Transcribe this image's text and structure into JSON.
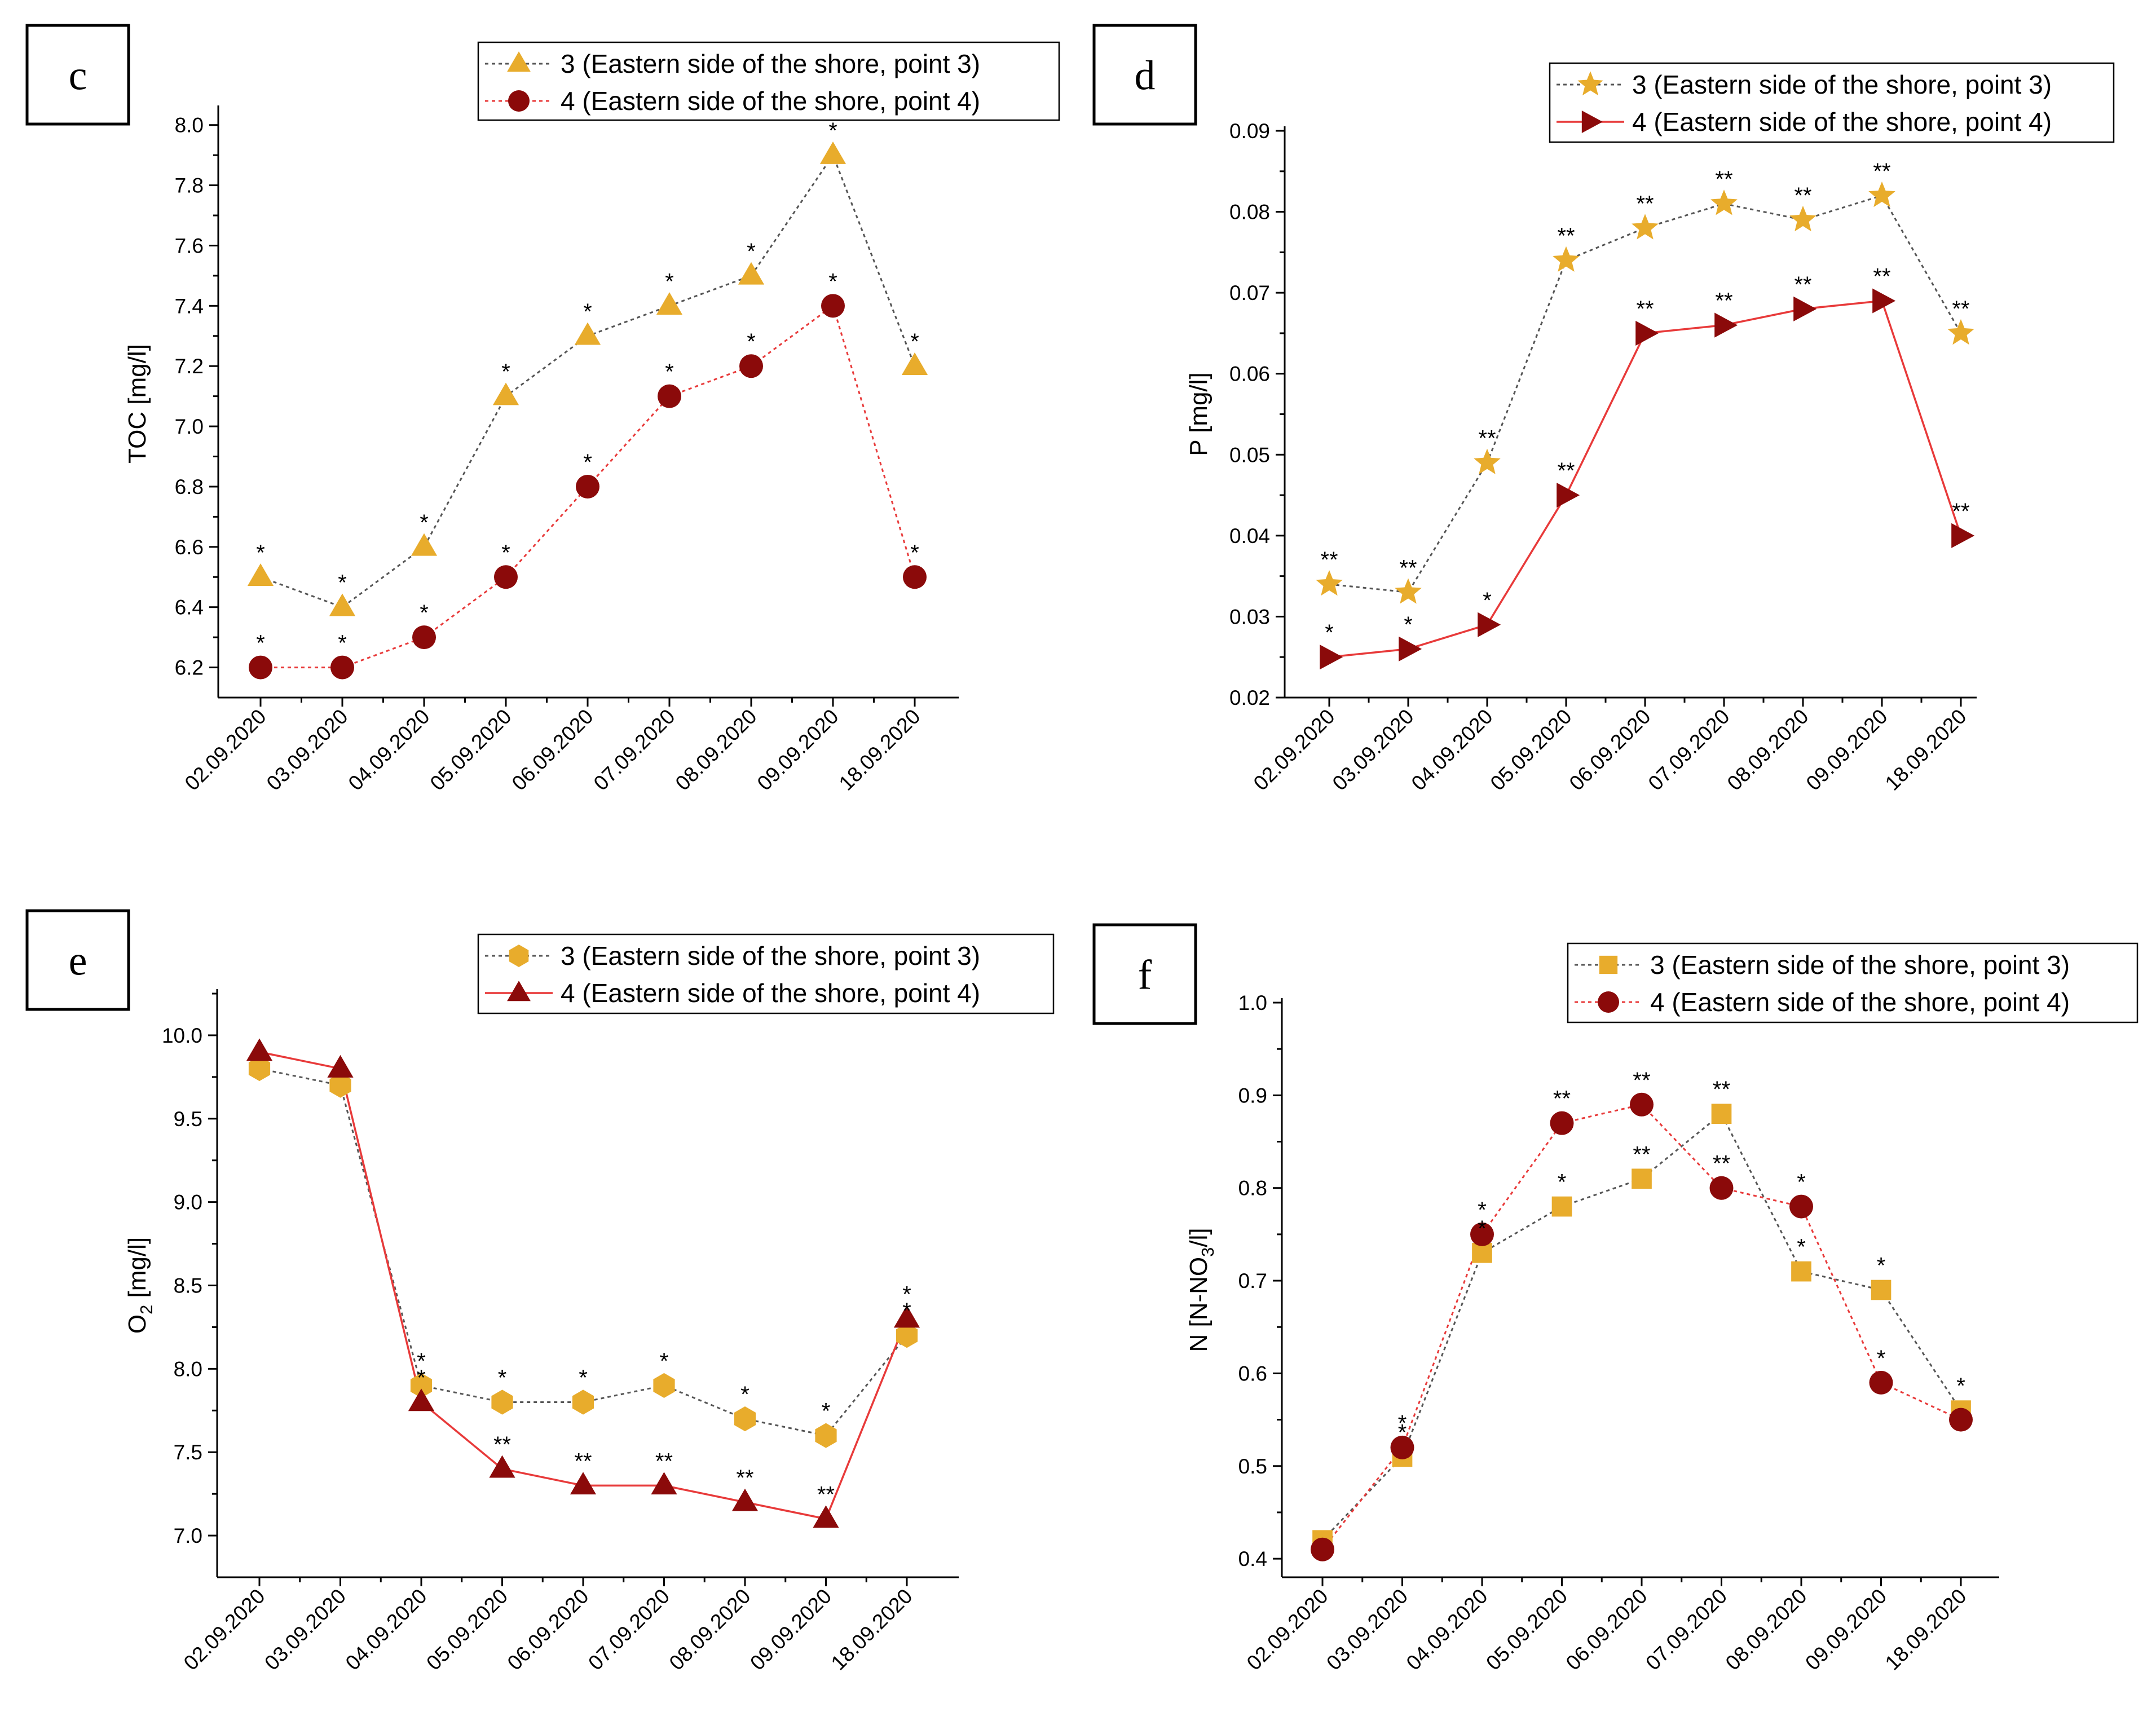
{
  "figure": {
    "panels": [
      "c",
      "d",
      "e",
      "f"
    ]
  },
  "colors": {
    "gold": "#E8AC2C",
    "darkred": "#8B0A0A",
    "red_line": "#E83A3A",
    "gray_line": "#555555"
  },
  "chart_data": [
    {
      "panel": "c",
      "type": "line",
      "categories": [
        "02.09.2020",
        "03.09.2020",
        "04.09.2020",
        "05.09.2020",
        "06.09.2020",
        "07.09.2020",
        "08.09.2020",
        "09.09.2020",
        "18.09.2020"
      ],
      "ylabel": "TOC [mg/l]",
      "ylim": [
        6.1,
        8.05
      ],
      "yticks": [
        "6.2",
        "6.4",
        "6.6",
        "6.8",
        "7.0",
        "7.2",
        "7.4",
        "7.6",
        "7.8",
        "8.0"
      ],
      "legend_position": "top-right",
      "series": [
        {
          "name": "3 (Eastern side of the shore, point 3)",
          "marker": "triangle",
          "color": "#E8AC2C",
          "line": "dotted-gray",
          "values": [
            6.5,
            6.4,
            6.6,
            7.1,
            7.3,
            7.4,
            7.5,
            7.9,
            7.2
          ],
          "labels": [
            "*",
            "*",
            "*",
            "*",
            "*",
            "*",
            "*",
            "*",
            "*"
          ]
        },
        {
          "name": "4 (Eastern side of the shore, point 4)",
          "marker": "circle",
          "color": "#8B0A0A",
          "line": "dotted-red",
          "values": [
            6.2,
            6.2,
            6.3,
            6.5,
            6.8,
            7.1,
            7.2,
            7.4,
            6.5
          ],
          "labels": [
            "*",
            "*",
            "*",
            "*",
            "*",
            "*",
            "*",
            "*",
            "*"
          ]
        }
      ]
    },
    {
      "panel": "d",
      "type": "line",
      "categories": [
        "02.09.2020",
        "03.09.2020",
        "04.09.2020",
        "05.09.2020",
        "06.09.2020",
        "07.09.2020",
        "08.09.2020",
        "09.09.2020",
        "18.09.2020"
      ],
      "ylabel": "P [mg/l]",
      "ylim": [
        0.02,
        0.09
      ],
      "yticks": [
        "0.02",
        "0.03",
        "0.04",
        "0.05",
        "0.06",
        "0.07",
        "0.08",
        "0.09"
      ],
      "legend_position": "top-right",
      "series": [
        {
          "name": "3 (Eastern side of the shore, point 3)",
          "marker": "star",
          "color": "#E8AC2C",
          "line": "dotted-gray",
          "values": [
            0.034,
            0.033,
            0.049,
            0.074,
            0.078,
            0.081,
            0.079,
            0.082,
            0.065
          ],
          "labels": [
            "**",
            "**",
            "**",
            "**",
            "**",
            "**",
            "**",
            "**",
            "**"
          ]
        },
        {
          "name": "4 (Eastern side of the shore, point 4)",
          "marker": "triangle-right",
          "color": "#8B0A0A",
          "line": "solid-red",
          "values": [
            0.025,
            0.026,
            0.029,
            0.045,
            0.065,
            0.066,
            0.068,
            0.069,
            0.04
          ],
          "labels": [
            "*",
            "*",
            "*",
            "**",
            "**",
            "**",
            "**",
            "**",
            "**"
          ]
        }
      ]
    },
    {
      "panel": "e",
      "type": "line",
      "categories": [
        "02.09.2020",
        "03.09.2020",
        "04.09.2020",
        "05.09.2020",
        "06.09.2020",
        "07.09.2020",
        "08.09.2020",
        "09.09.2020",
        "18.09.2020"
      ],
      "ylabel": "O2 [mg/l]",
      "ylabel_main": "O",
      "ylabel_sub": "2",
      "ylabel_rest": " [mg/l]",
      "ylim": [
        6.75,
        10.25
      ],
      "yticks": [
        "7.0",
        "7.5",
        "8.0",
        "8.5",
        "9.0",
        "9.5",
        "10.0"
      ],
      "legend_position": "top-right",
      "series": [
        {
          "name": "3 (Eastern side of the shore, point 3)",
          "marker": "hexagon",
          "color": "#E8AC2C",
          "line": "dotted-gray",
          "values": [
            9.8,
            9.7,
            7.9,
            7.8,
            7.8,
            7.9,
            7.7,
            7.6,
            8.2
          ],
          "labels": [
            "",
            "",
            "*",
            "*",
            "*",
            "*",
            "*",
            "*",
            "*"
          ]
        },
        {
          "name": "4 (Eastern side of the shore, point 4)",
          "marker": "triangle",
          "color": "#8B0A0A",
          "line": "solid-red",
          "values": [
            9.9,
            9.8,
            7.8,
            7.4,
            7.3,
            7.3,
            7.2,
            7.1,
            8.3
          ],
          "labels": [
            "",
            "",
            "*",
            "**",
            "**",
            "**",
            "**",
            "**",
            "*"
          ]
        }
      ]
    },
    {
      "panel": "f",
      "type": "line",
      "categories": [
        "02.09.2020",
        "03.09.2020",
        "04.09.2020",
        "05.09.2020",
        "06.09.2020",
        "07.09.2020",
        "08.09.2020",
        "09.09.2020",
        "18.09.2020"
      ],
      "ylabel": "N [N-NO3/l]",
      "ylabel_main": "N [N-NO",
      "ylabel_sub": "3",
      "ylabel_rest": "/l]",
      "ylim": [
        0.38,
        1.0
      ],
      "yticks": [
        "0.4",
        "0.5",
        "0.6",
        "0.7",
        "0.8",
        "0.9",
        "1.0"
      ],
      "legend_position": "top-right",
      "series": [
        {
          "name": "3 (Eastern side of the shore, point 3)",
          "marker": "square",
          "color": "#E8AC2C",
          "line": "dotted-gray",
          "values": [
            0.42,
            0.51,
            0.73,
            0.78,
            0.81,
            0.88,
            0.71,
            0.69,
            0.56
          ],
          "labels": [
            "",
            "*",
            "*",
            "*",
            "**",
            "**",
            "*",
            "*",
            "*"
          ]
        },
        {
          "name": "4 (Eastern side of the shore, point 4)",
          "marker": "circle",
          "color": "#8B0A0A",
          "line": "dotted-red",
          "values": [
            0.41,
            0.52,
            0.75,
            0.87,
            0.89,
            0.8,
            0.78,
            0.59,
            0.55
          ],
          "labels": [
            "",
            "*",
            "*",
            "**",
            "**",
            "**",
            "*",
            "*",
            ""
          ]
        }
      ]
    }
  ]
}
